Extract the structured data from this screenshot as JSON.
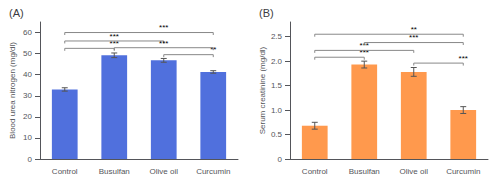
{
  "chart_data": [
    {
      "type": "bar",
      "title": "(A)",
      "categories": [
        "Control",
        "Busulfan",
        "Olive oil",
        "Curcumin"
      ],
      "values": [
        33.0,
        49.2,
        46.8,
        41.3
      ],
      "errors": [
        0.8,
        1.1,
        0.9,
        0.6
      ],
      "ylabel": "Blood urea nitrogen (mg/dl)",
      "ylim": [
        0,
        65
      ],
      "yticks": [
        0,
        10,
        20,
        30,
        40,
        50,
        60
      ],
      "grid": false,
      "annotations": [
        {
          "text": "***",
          "x1": "Control",
          "x2": "Busulfan",
          "y": 52.5
        },
        {
          "text": "***",
          "x1": "Control",
          "x2": "Olive oil",
          "y": 56.0
        },
        {
          "text": "***",
          "x1": "Control",
          "x2": "Curcumin",
          "y": 60.0
        },
        {
          "text": "**",
          "x1": "Olive oil",
          "x2": "Curcumin",
          "y": 49.5
        },
        {
          "text": "***",
          "x1": "Busulfan",
          "x2": "Curcumin",
          "y": 52.8
        }
      ]
    },
    {
      "type": "bar",
      "title": "(B)",
      "categories": [
        "Control",
        "Busulfan",
        "Olive oil",
        "Curcumin"
      ],
      "values": [
        0.68,
        1.93,
        1.78,
        1.0
      ],
      "errors": [
        0.07,
        0.07,
        0.09,
        0.07
      ],
      "ylabel": "Serum creatinine (mg/dl)",
      "ylim": [
        0,
        2.8
      ],
      "yticks": [
        0,
        0.5,
        {
          "value": 1.0,
          "label": "1.0"
        },
        1.5,
        {
          "value": 2.0,
          "label": "2.0"
        },
        2.5
      ],
      "grid": false,
      "annotations": [
        {
          "text": "***",
          "x1": "Control",
          "x2": "Busulfan",
          "y": 2.08
        },
        {
          "text": "***",
          "x1": "Control",
          "x2": "Olive oil",
          "y": 2.22
        },
        {
          "text": "**",
          "x1": "Control",
          "x2": "Curcumin",
          "y": 2.55
        },
        {
          "text": "***",
          "x1": "Olive oil",
          "x2": "Curcumin",
          "y": 1.96
        },
        {
          "text": "***",
          "x1": "Busulfan",
          "x2": "Curcumin",
          "y": 2.38
        }
      ]
    }
  ]
}
